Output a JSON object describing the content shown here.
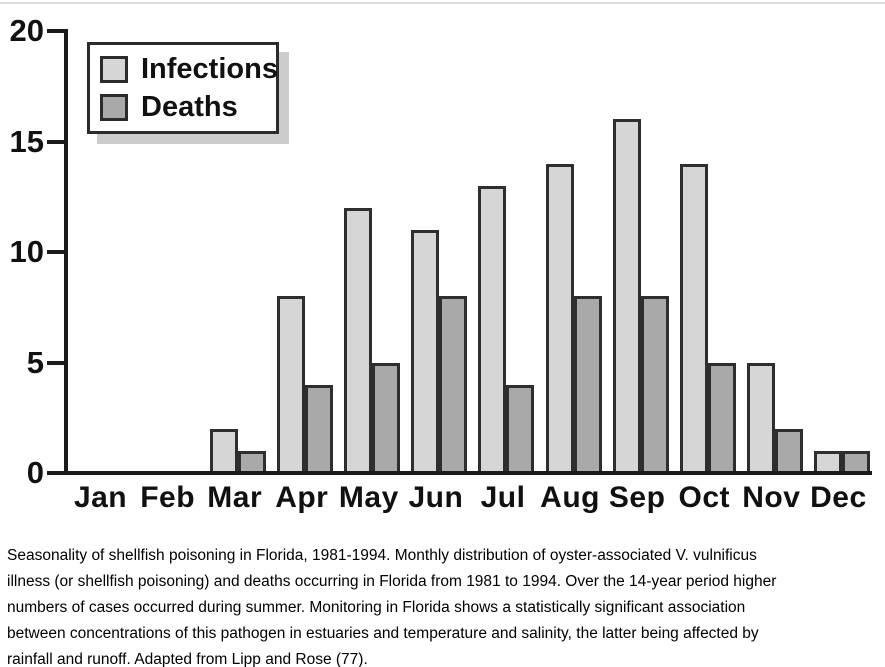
{
  "chart_data": {
    "type": "bar",
    "title": "",
    "xlabel": "",
    "ylabel": "",
    "categories": [
      "Jan",
      "Feb",
      "Mar",
      "Apr",
      "May",
      "Jun",
      "Jul",
      "Aug",
      "Sep",
      "Oct",
      "Nov",
      "Dec"
    ],
    "series": [
      {
        "name": "Infections",
        "color": "#d6d6d6",
        "values": [
          0,
          0,
          2,
          8,
          12,
          11,
          13,
          14,
          16,
          14,
          5,
          1
        ]
      },
      {
        "name": "Deaths",
        "color": "#a9a9a9",
        "values": [
          0,
          0,
          1,
          4,
          5,
          8,
          4,
          8,
          8,
          5,
          2,
          1
        ]
      }
    ],
    "ylim": [
      0,
      20
    ],
    "yticks": [
      0,
      5,
      10,
      15,
      20
    ],
    "grid": false,
    "legend_position": "top-left",
    "bar_border_color": "#2e2e2e",
    "axis_color": "#1b1b1b"
  },
  "legend": {
    "shadow_color": "#cccccc"
  },
  "caption": {
    "lines": [
      "Seasonality of shellfish poisoning in Florida, 1981-1994. Monthly distribution of oyster-associated V. vulnificus",
      "illness (or shellfish poisoning) and deaths occurring in Florida from 1981 to 1994. Over the 14-year period higher",
      "numbers of cases occurred during summer. Monitoring in Florida shows a statistically significant association",
      "between concentrations of this pathogen in estuaries and temperature and salinity, the latter being affected by",
      "rainfall and runoff. Adapted from Lipp and Rose (77)."
    ]
  }
}
